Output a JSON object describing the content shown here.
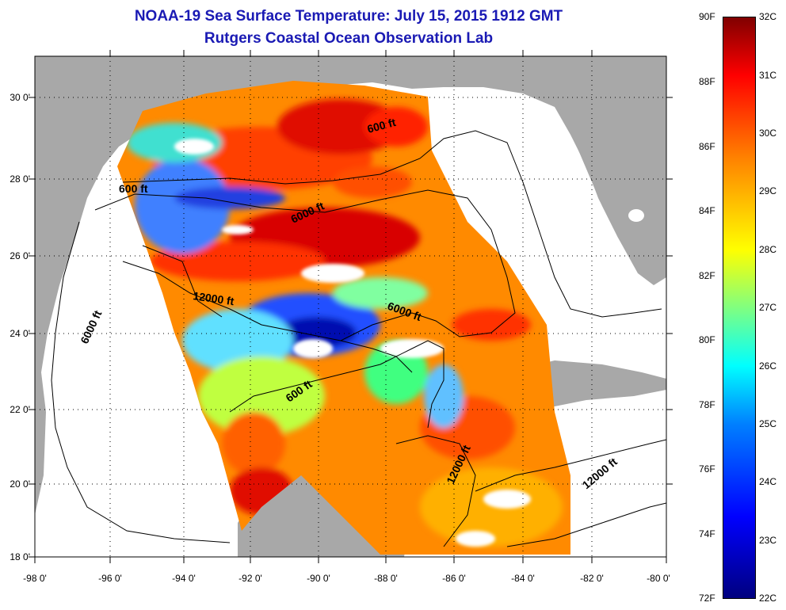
{
  "title": {
    "line1": "NOAA-19 Sea Surface Temperature:  July 15, 2015 1912 GMT",
    "line2": "Rutgers Coastal Ocean Observation Lab"
  },
  "latitude_labels": [
    "30 0'",
    "28 0'",
    "26 0'",
    "24 0'",
    "22 0'",
    "20 0'",
    "18 0'"
  ],
  "longitude_labels": [
    "-98 0'",
    "-96 0'",
    "-94 0'",
    "-92 0'",
    "-90 0'",
    "-88 0'",
    "-86 0'",
    "-84 0'",
    "-82 0'",
    "-80 0'"
  ],
  "contour_labels": {
    "c600_nw": "600 ft",
    "c600_ne": "600 ft",
    "c600_s": "600 ft",
    "c6000_n": "6000 ft",
    "c6000_w": "6000 ft",
    "c6000_e": "6000 ft",
    "c12000_c": "12000 ft",
    "c12000_se": "12000 ft",
    "c12000_carib": "12000 ft"
  },
  "colorbar": {
    "fahrenheit": [
      "90F",
      "88F",
      "86F",
      "84F",
      "82F",
      "80F",
      "78F",
      "76F",
      "74F",
      "72F"
    ],
    "celsius": [
      "32C",
      "31C",
      "30C",
      "29C",
      "28C",
      "27C",
      "26C",
      "25C",
      "24C",
      "23C",
      "22C"
    ]
  },
  "colors": {
    "land": "#a8a8a8",
    "ocean_nodata": "#ffffff",
    "title": "#1a1ab4",
    "warm": "#ff3000",
    "hot": "#c00000",
    "cool": "#00c8ff",
    "cold": "#0000c8"
  }
}
